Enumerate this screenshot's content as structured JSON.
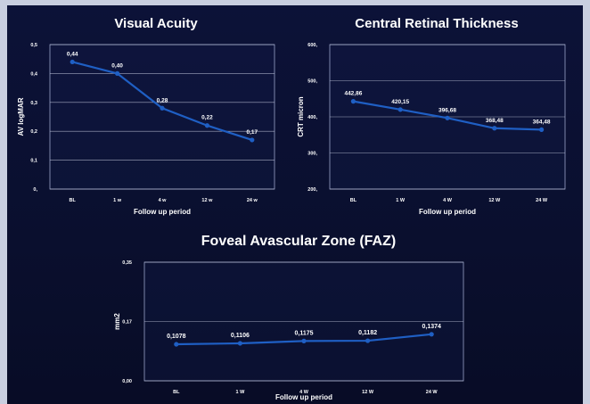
{
  "chart_data": [
    {
      "type": "line",
      "title": "Visual Acuity",
      "xlabel": "Follow up period",
      "ylabel": "AV logMAR",
      "categories": [
        "BL",
        "1 w",
        "4 w",
        "12 w",
        "24 w"
      ],
      "values": [
        0.44,
        0.4,
        0.28,
        0.22,
        0.17
      ],
      "value_labels": [
        "0,44",
        "0,40",
        "0,28",
        "0,22",
        "0,17"
      ],
      "yticks": [
        "0,",
        "0,1",
        "0,2",
        "0,3",
        "0,4",
        "0,5"
      ],
      "ylim": [
        0,
        0.5
      ],
      "grid": true,
      "color": "#1f5fc4"
    },
    {
      "type": "line",
      "title": "Central Retinal Thickness",
      "xlabel": "Follow up period",
      "ylabel": "CRT micron",
      "categories": [
        "BL",
        "1 W",
        "4 W",
        "12 W",
        "24 W"
      ],
      "values": [
        442.86,
        420.15,
        396.68,
        368.48,
        364.48
      ],
      "value_labels": [
        "442,86",
        "420,15",
        "396,68",
        "368,48",
        "364,48"
      ],
      "yticks": [
        "200,",
        "300,",
        "400,",
        "500,",
        "600,"
      ],
      "ylim": [
        200,
        600
      ],
      "grid": true,
      "color": "#1f5fc4"
    },
    {
      "type": "line",
      "title": "Foveal Avascular Zone (FAZ)",
      "xlabel": "Follow up period",
      "ylabel": "mm2",
      "categories": [
        "BL",
        "1 W",
        "4 W",
        "12 W",
        "24 W"
      ],
      "values": [
        0.1078,
        0.1106,
        0.1175,
        0.1182,
        0.1374
      ],
      "value_labels": [
        "0,1078",
        "0,1106",
        "0,1175",
        "0,1182",
        "0,1374"
      ],
      "yticks": [
        "0,00",
        "0,17",
        "0,35"
      ],
      "ylim": [
        0,
        0.35
      ],
      "grid": true,
      "color": "#1f5fc4"
    }
  ]
}
